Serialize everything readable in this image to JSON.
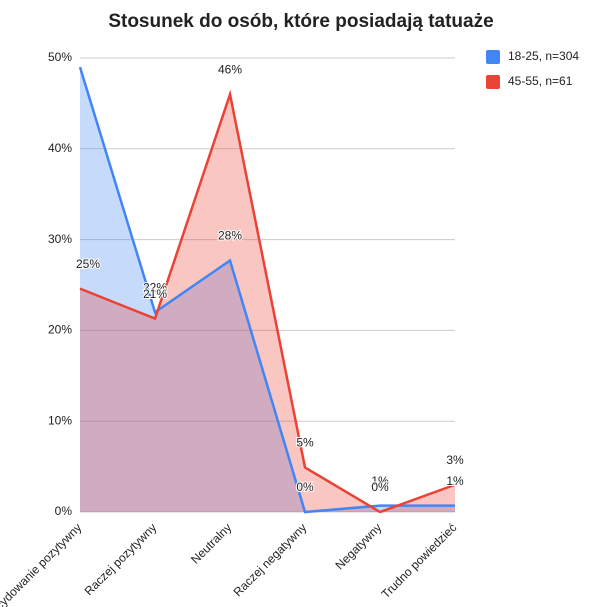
{
  "chart_data": {
    "type": "area",
    "title": "Stosunek do osób, które posiadają tatuaże",
    "categories": [
      "Zdecydowanie pozytywny",
      "Raczej pozytywny",
      "Neutralny",
      "Raczej negatywny",
      "Negatywny",
      "Trudno powiedzieć"
    ],
    "series": [
      {
        "name": "18-25, n=304",
        "color": "#4285f4",
        "values": [
          49,
          22,
          27.7,
          0,
          0.7,
          0.7
        ],
        "value_labels": [
          null,
          "22%",
          "28%",
          "0%",
          "1%",
          "1%"
        ]
      },
      {
        "name": "45-55, n=61",
        "color": "#ea4335",
        "values": [
          24.6,
          21.3,
          46,
          4.9,
          0,
          3
        ],
        "value_labels": [
          "25%",
          "21%",
          "46%",
          "5%",
          "0%",
          "3%"
        ]
      }
    ],
    "ylim": [
      0,
      50
    ],
    "yticks": [
      {
        "value": 0,
        "label": "0%"
      },
      {
        "value": 10,
        "label": "10%"
      },
      {
        "value": 20,
        "label": "20%"
      },
      {
        "value": 30,
        "label": "30%"
      },
      {
        "value": 40,
        "label": "40%"
      },
      {
        "value": 50,
        "label": "50%"
      }
    ],
    "grid": true,
    "legend": "right"
  }
}
